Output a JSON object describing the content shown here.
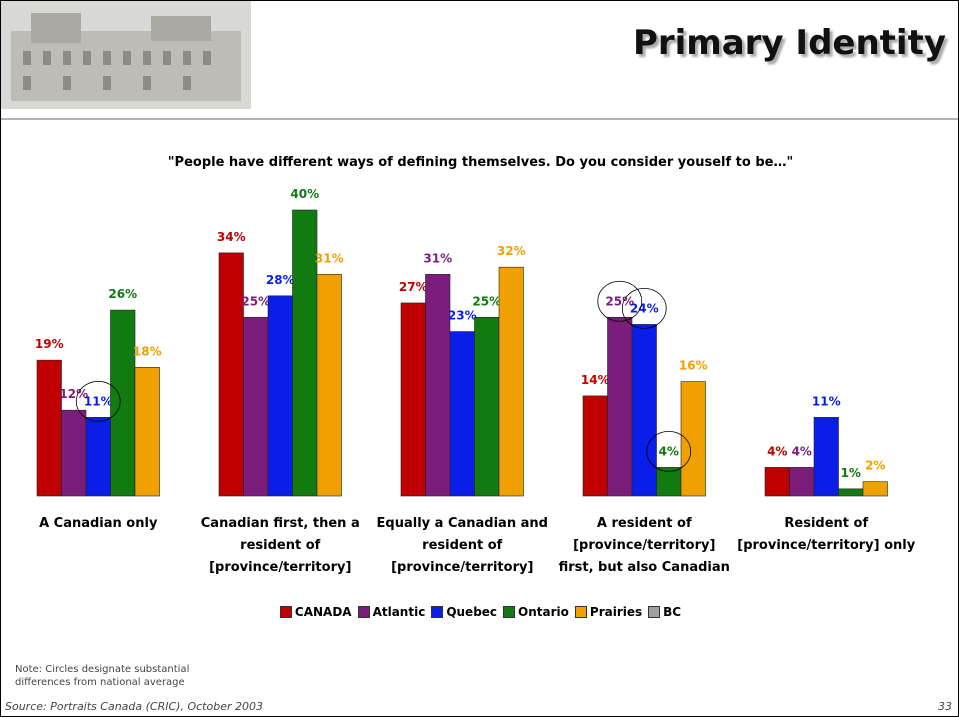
{
  "slide": {
    "title": "Primary Identity",
    "note": "Note:  Circles designate substantial differences from national average",
    "source": "Source: Portraits Canada (CRIC), October 2003",
    "page": 33
  },
  "chart_data": {
    "type": "bar",
    "title": "\"People have different ways of defining themselves.  Do you consider youself to be…\"",
    "categories": [
      "A Canadian only",
      "Canadian first, then a resident of [province/territory]",
      "Equally a Canadian and resident of [province/territory]",
      "A resident of [province/territory] first, but also Canadian",
      "Resident of [province/territory] only"
    ],
    "series": [
      {
        "name": "CANADA",
        "color": "#c00000",
        "values": [
          19,
          34,
          27,
          14,
          4
        ],
        "value_labels": [
          "19%",
          "34%",
          "27%",
          "14%",
          "4%"
        ]
      },
      {
        "name": "Atlantic",
        "color": "#7b1e7b",
        "values": [
          12,
          25,
          31,
          25,
          4
        ],
        "value_labels": [
          "12%",
          "25%",
          "31%",
          "25%",
          "4%"
        ]
      },
      {
        "name": "Quebec",
        "color": "#0a1ee8",
        "values": [
          11,
          28,
          23,
          24,
          11
        ],
        "value_labels": [
          "11%",
          "28%",
          "23%",
          "24%",
          "11%"
        ]
      },
      {
        "name": "Ontario",
        "color": "#117a11",
        "values": [
          26,
          40,
          25,
          4,
          1
        ],
        "value_labels": [
          "26%",
          "40%",
          "25%",
          "4%",
          "1%"
        ]
      },
      {
        "name": "Prairies",
        "color": "#f0a000",
        "values": [
          18,
          31,
          32,
          16,
          2
        ],
        "value_labels": [
          "18%",
          "31%",
          "32%",
          "16%",
          "2%"
        ]
      },
      {
        "name": "BC",
        "color": "#a0a0a0",
        "values": [
          null,
          null,
          null,
          null,
          null
        ]
      }
    ],
    "ylim": [
      0,
      40
    ],
    "circled": [
      [
        2,
        0
      ],
      [
        1,
        3
      ],
      [
        2,
        3
      ],
      [
        3,
        3
      ]
    ],
    "legend": "bottom"
  }
}
